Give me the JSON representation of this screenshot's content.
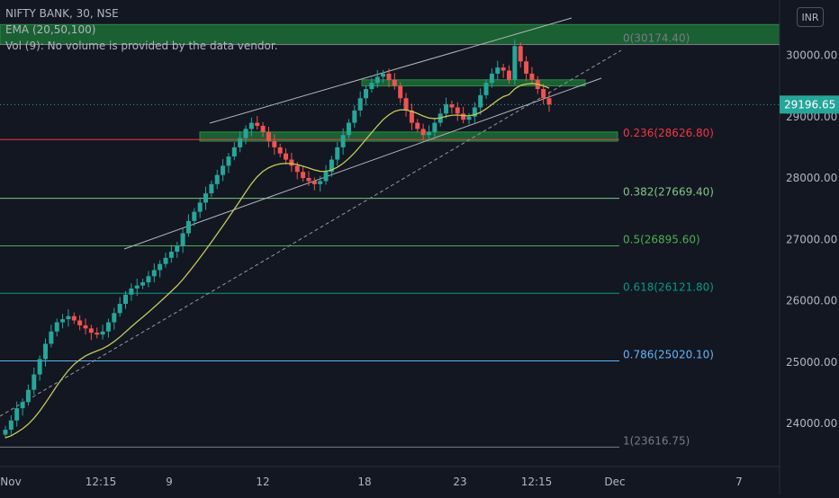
{
  "legend": {
    "symbol": "NIFTY BANK, 30, NSE",
    "ema": "EMA (20,50,100)",
    "volume": "Vol (9): No volume is provided by the data vendor."
  },
  "currency_button": "INR",
  "last_price": "29196.65",
  "colors": {
    "background": "#131722",
    "up": "#26a69a",
    "down": "#ef5350",
    "ema": "#c3c95a",
    "channel": "#b2b5be",
    "zone": "#1e7a3a",
    "price_label": "#26a69a"
  },
  "chart_data": {
    "type": "candlestick",
    "y_axis": {
      "range": [
        23300,
        30900
      ],
      "ticks": [
        24000,
        25000,
        26000,
        27000,
        28000,
        29000,
        30000
      ],
      "tick_labels": [
        "24000.00",
        "25000.00",
        "26000.00",
        "27000.00",
        "28000.00",
        "29000.00",
        "30000.00"
      ]
    },
    "x_axis": {
      "tick_labels": [
        "Nov",
        "12:15",
        "9",
        "12",
        "18",
        "23",
        "12:15",
        "Dec",
        "7"
      ]
    },
    "fibonacci": [
      {
        "level": "0",
        "price": 30174.4,
        "label": "0(30174.40)",
        "color": "#787b86"
      },
      {
        "level": "0.236",
        "price": 28626.8,
        "label": "0.236(28626.80)",
        "color": "#f23645"
      },
      {
        "level": "0.382",
        "price": 27669.4,
        "label": "0.382(27669.40)",
        "color": "#81c784"
      },
      {
        "level": "0.5",
        "price": 26895.6,
        "label": "0.5(26895.60)",
        "color": "#4caf50"
      },
      {
        "level": "0.618",
        "price": 26121.8,
        "label": "0.618(26121.80)",
        "color": "#089981"
      },
      {
        "level": "0.786",
        "price": 25020.1,
        "label": "0.786(25020.10)",
        "color": "#64b5f6"
      },
      {
        "level": "1",
        "price": 23616.75,
        "label": "1(23616.75)",
        "color": "#787b86"
      }
    ],
    "zones": [
      {
        "from": 30174.4,
        "to": 30500
      },
      {
        "from": 28600,
        "to": 28750
      },
      {
        "from": 29500,
        "to": 29600
      }
    ],
    "current_price": 29196.65,
    "series_close": [
      23900,
      24050,
      24250,
      24350,
      24550,
      24800,
      25050,
      25300,
      25500,
      25650,
      25700,
      25750,
      25680,
      25600,
      25550,
      25480,
      25450,
      25500,
      25650,
      25800,
      25950,
      26100,
      26200,
      26250,
      26300,
      26400,
      26500,
      26600,
      26700,
      26800,
      26900,
      27100,
      27300,
      27450,
      27600,
      27750,
      27900,
      28050,
      28200,
      28350,
      28500,
      28650,
      28800,
      28900,
      28850,
      28750,
      28600,
      28500,
      28400,
      28300,
      28200,
      28100,
      28000,
      27950,
      27900,
      27950,
      28100,
      28300,
      28500,
      28700,
      28900,
      29100,
      29300,
      29450,
      29550,
      29650,
      29700,
      29600,
      29500,
      29300,
      29100,
      28900,
      28800,
      28700,
      28750,
      28900,
      29050,
      29200,
      29150,
      29050,
      28950,
      29000,
      29150,
      29350,
      29550,
      29700,
      29800,
      29750,
      29600,
      30150,
      29900,
      29700,
      29600,
      29450,
      29300,
      29200
    ]
  }
}
